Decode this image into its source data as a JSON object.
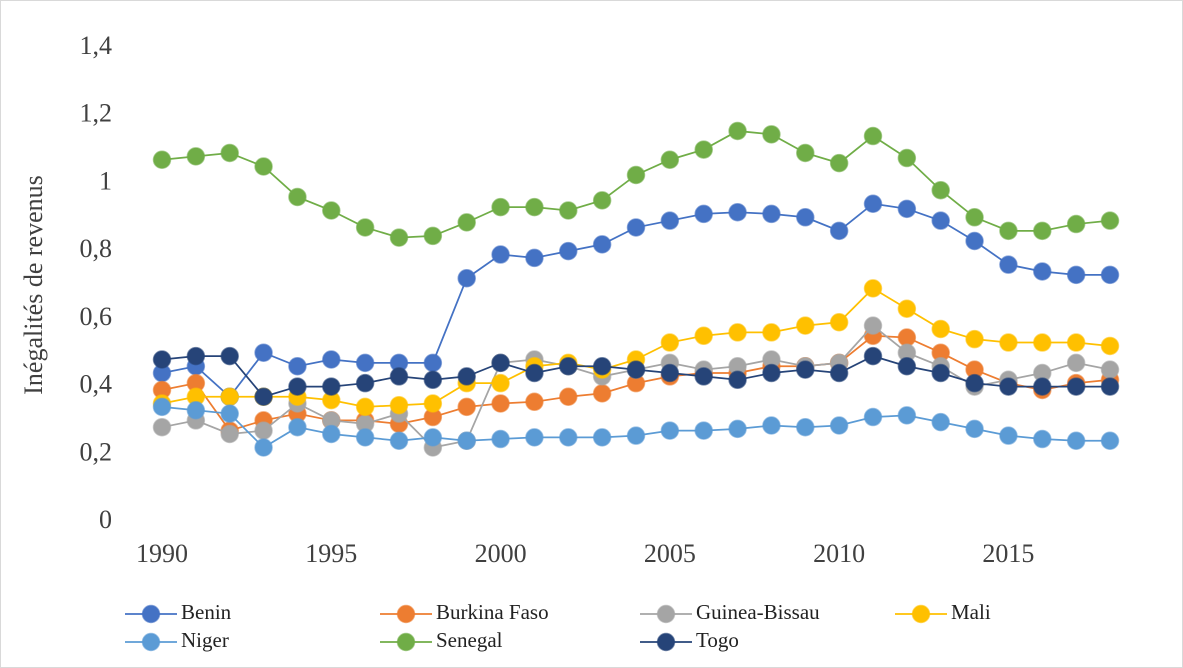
{
  "chart_data": {
    "type": "line",
    "y_label": "Inégalités de revenus",
    "x": [
      1990,
      1991,
      1992,
      1993,
      1994,
      1995,
      1996,
      1997,
      1998,
      1999,
      2000,
      2001,
      2002,
      2003,
      2004,
      2005,
      2006,
      2007,
      2008,
      2009,
      2010,
      2011,
      2012,
      2013,
      2014,
      2015,
      2016,
      2017,
      2018
    ],
    "xlim": [
      1990,
      2018
    ],
    "xticks": [
      1990,
      1995,
      2000,
      2005,
      2010,
      2015
    ],
    "ylim": [
      0,
      1.4
    ],
    "yticks": [
      0,
      {
        "value": 0.2,
        "label": "0,2"
      },
      {
        "value": 0.4,
        "label": "0,4"
      },
      {
        "value": 0.6,
        "label": "0,6"
      },
      {
        "value": 0.8,
        "label": "0,8"
      },
      1,
      {
        "value": 1.2,
        "label": "1,2"
      },
      {
        "value": 1.4,
        "label": "1,4"
      }
    ],
    "grid": false,
    "legend": "bottom",
    "series": [
      {
        "name": "Benin",
        "color": "#4472c4",
        "values": [
          0.44,
          0.46,
          0.37,
          0.5,
          0.46,
          0.48,
          0.47,
          0.47,
          0.47,
          0.72,
          0.79,
          0.78,
          0.8,
          0.82,
          0.87,
          0.89,
          0.91,
          0.915,
          0.91,
          0.9,
          0.86,
          0.94,
          0.925,
          0.89,
          0.83,
          0.76,
          0.74,
          0.73,
          0.73
        ]
      },
      {
        "name": "Burkina Faso",
        "color": "#ed7d31",
        "values": [
          0.39,
          0.41,
          0.27,
          0.3,
          0.32,
          0.3,
          0.3,
          0.29,
          0.31,
          0.34,
          0.35,
          0.355,
          0.37,
          0.38,
          0.41,
          0.43,
          0.44,
          0.44,
          0.46,
          0.46,
          0.47,
          0.55,
          0.545,
          0.5,
          0.45,
          0.41,
          0.39,
          0.41,
          0.42
        ]
      },
      {
        "name": "Guinea-Bissau",
        "color": "#a5a5a5",
        "values": [
          0.28,
          0.3,
          0.26,
          0.27,
          0.35,
          0.3,
          0.29,
          0.32,
          0.22,
          0.24,
          0.47,
          0.48,
          0.46,
          0.43,
          0.45,
          0.47,
          0.45,
          0.46,
          0.48,
          0.46,
          0.47,
          0.58,
          0.5,
          0.46,
          0.4,
          0.42,
          0.44,
          0.47,
          0.45
        ]
      },
      {
        "name": "Mali",
        "color": "#ffc000",
        "values": [
          0.35,
          0.37,
          0.37,
          0.37,
          0.37,
          0.36,
          0.34,
          0.345,
          0.35,
          0.41,
          0.41,
          0.46,
          0.47,
          0.45,
          0.48,
          0.53,
          0.55,
          0.56,
          0.56,
          0.58,
          0.59,
          0.69,
          0.63,
          0.57,
          0.54,
          0.53,
          0.53,
          0.53,
          0.52
        ]
      },
      {
        "name": "Niger",
        "color": "#5b9bd5",
        "values": [
          0.34,
          0.33,
          0.32,
          0.22,
          0.28,
          0.26,
          0.25,
          0.24,
          0.25,
          0.24,
          0.245,
          0.25,
          0.25,
          0.25,
          0.255,
          0.27,
          0.27,
          0.275,
          0.285,
          0.28,
          0.285,
          0.31,
          0.315,
          0.295,
          0.275,
          0.255,
          0.245,
          0.24,
          0.24
        ]
      },
      {
        "name": "Senegal",
        "color": "#70ad47",
        "values": [
          1.07,
          1.08,
          1.09,
          1.05,
          0.96,
          0.92,
          0.87,
          0.84,
          0.845,
          0.885,
          0.93,
          0.93,
          0.92,
          0.95,
          1.025,
          1.07,
          1.1,
          1.155,
          1.145,
          1.09,
          1.06,
          1.14,
          1.075,
          0.98,
          0.9,
          0.86,
          0.86,
          0.88,
          0.89
        ]
      },
      {
        "name": "Togo",
        "color": "#264478",
        "values": [
          0.48,
          0.49,
          0.49,
          0.37,
          0.4,
          0.4,
          0.41,
          0.43,
          0.42,
          0.43,
          0.47,
          0.44,
          0.46,
          0.46,
          0.45,
          0.44,
          0.43,
          0.42,
          0.44,
          0.45,
          0.44,
          0.49,
          0.46,
          0.44,
          0.41,
          0.4,
          0.4,
          0.4,
          0.4
        ]
      }
    ]
  }
}
